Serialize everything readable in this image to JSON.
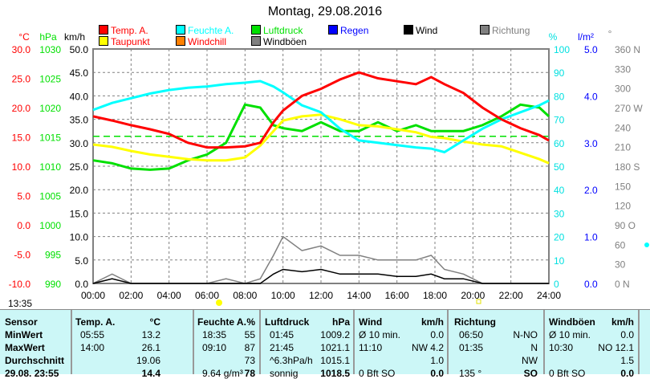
{
  "title": "Montag, 29.08.2016",
  "legend": [
    {
      "label": "Temp. A.",
      "color": "#ff0000"
    },
    {
      "label": "Taupunkt",
      "color": "#ffff00",
      "text": "#ff0000"
    },
    {
      "label": "Feuchte A.",
      "color": "#00ffff"
    },
    {
      "label": "Windchill",
      "color": "#ff8000",
      "text": "#ff0000"
    },
    {
      "label": "Luftdruck",
      "color": "#00e000"
    },
    {
      "label": "Windböen",
      "color": "#808080",
      "text": "#000000"
    },
    {
      "label": "Regen",
      "color": "#0000ff"
    },
    {
      "label": "Wind",
      "color": "#000000"
    },
    {
      "label": "Richtung",
      "color": "#808080"
    }
  ],
  "axes": {
    "temp_unit": "°C",
    "temp_ticks": [
      "30.0",
      "25.0",
      "20.0",
      "15.0",
      "10.0",
      "5.0",
      "0.0",
      "-5.0",
      "-10.0"
    ],
    "press_unit": "hPa",
    "press_ticks": [
      "1030",
      "1025",
      "1020",
      "1015",
      "1010",
      "1005",
      "1000",
      "995",
      "990"
    ],
    "wind_unit": "km/h",
    "wind_ticks": [
      "50.0",
      "45.0",
      "40.0",
      "35.0",
      "30.0",
      "25.0",
      "20.0",
      "15.0",
      "10.0",
      "5.0",
      "0.0"
    ],
    "hum_unit": "%",
    "hum_ticks": [
      "100",
      "90",
      "80",
      "70",
      "60",
      "50",
      "40",
      "30",
      "20",
      "10",
      "0"
    ],
    "rain_unit": "l/m²",
    "rain_ticks": [
      "5.0",
      "4.0",
      "3.0",
      "2.0",
      "1.0",
      "0.0"
    ],
    "dir_unit": "°",
    "dir_ticks": [
      "360 N",
      "330",
      "300",
      "270 W",
      "240",
      "210",
      "180 S",
      "150",
      "120",
      "90 O",
      "60",
      "30",
      "0 N"
    ],
    "x_ticks": [
      "00:00",
      "02:00",
      "04:00",
      "06:00",
      "08:00",
      "10:00",
      "12:00",
      "14:00",
      "16:00",
      "18:00",
      "20:00",
      "22:00",
      "24:00"
    ]
  },
  "current_time": "13:35",
  "chart_data": {
    "type": "line",
    "title": "Montag, 29.08.2016",
    "x": [
      0,
      1,
      2,
      3,
      4,
      5,
      6,
      7,
      8,
      8.8,
      9.5,
      10,
      11,
      12,
      13,
      14,
      15,
      16,
      17,
      17.8,
      18.5,
      19.5,
      20.5,
      21.5,
      22.5,
      23.5,
      24
    ],
    "series": [
      {
        "name": "Temp. A.",
        "unit": "°C",
        "values": [
          18.5,
          17.8,
          17,
          16.3,
          15.5,
          14,
          13.2,
          13.2,
          13.4,
          14,
          17.5,
          19.5,
          22,
          23.2,
          24.8,
          26,
          25,
          24.5,
          24,
          25.2,
          24,
          22.5,
          20,
          18,
          16.5,
          15.3,
          14.4
        ]
      },
      {
        "name": "Taupunkt",
        "unit": "°C",
        "values": [
          13.7,
          13.3,
          12.6,
          12,
          11.6,
          11.2,
          11,
          11,
          11.5,
          13.5,
          16,
          17.8,
          18.5,
          18.8,
          18,
          17,
          16.8,
          16.3,
          15.8,
          15,
          14.8,
          14.2,
          13.7,
          13.4,
          12.3,
          11.2,
          10.5
        ]
      },
      {
        "name": "Feuchte A.",
        "unit": "%",
        "values": [
          74,
          77,
          79,
          81,
          82.5,
          83.5,
          84,
          85,
          85.6,
          86.3,
          84,
          81.5,
          76,
          73,
          66,
          61,
          60,
          59,
          58,
          57.5,
          56,
          61,
          66,
          70,
          73,
          76,
          78
        ]
      },
      {
        "name": "Luftdruck",
        "unit": "hPa",
        "values": [
          1011,
          1010.5,
          1009.6,
          1009.4,
          1009.6,
          1011,
          1012,
          1014,
          1020.5,
          1020,
          1017,
          1016.5,
          1016,
          1017.5,
          1016,
          1016,
          1017.5,
          1016,
          1017,
          1016,
          1016,
          1016,
          1017,
          1018.5,
          1020.5,
          1020,
          1018.5
        ]
      },
      {
        "name": "Wind",
        "unit": "km/h",
        "values": [
          0,
          1,
          0,
          0,
          0,
          0,
          0,
          0,
          0,
          0,
          2,
          3,
          2.5,
          3,
          2,
          2,
          2,
          1.5,
          1.5,
          2,
          1,
          1,
          0,
          0,
          0,
          0,
          0
        ]
      },
      {
        "name": "Windböen",
        "unit": "km/h",
        "values": [
          0,
          2,
          0,
          0,
          0,
          0,
          0,
          1,
          0,
          1,
          6,
          10,
          7,
          8,
          6,
          6,
          5,
          5,
          5,
          6,
          3,
          2,
          0,
          0,
          0,
          0,
          0
        ]
      }
    ],
    "reference_line": {
      "name": "Luftdruck Mittel",
      "unit": "hPa",
      "value": 1015.1
    }
  },
  "table": {
    "headers": [
      [
        "Sensor",
        ""
      ],
      [
        "Temp. A.",
        "°C"
      ],
      [
        "Feuchte A.",
        "%"
      ],
      [
        "Luftdruck",
        "hPa"
      ],
      [
        "Wind",
        "km/h"
      ],
      [
        "Richtung",
        ""
      ],
      [
        "Windböen",
        "km/h"
      ]
    ],
    "rows": [
      {
        "label": "MinWert",
        "cells": [
          [
            "05:55",
            "13.2"
          ],
          [
            "18:35",
            "55"
          ],
          [
            "01:45",
            "1009.2"
          ],
          [
            "Ø 10 min.",
            "0.0"
          ],
          [
            "06:50",
            "N-NO"
          ],
          [
            "Ø 10 min.",
            "0.0"
          ]
        ]
      },
      {
        "label": "MaxWert",
        "cells": [
          [
            "14:00",
            "26.1"
          ],
          [
            "09:10",
            "87"
          ],
          [
            "21:45",
            "1021.1"
          ],
          [
            "11:10",
            "NW 4.2"
          ],
          [
            "01:35",
            "N"
          ],
          [
            "10:30",
            "NO 12.1"
          ]
        ]
      },
      {
        "label": "Durchschnitt",
        "cells": [
          [
            "",
            "19.06"
          ],
          [
            "",
            "73"
          ],
          [
            "^6.3hPa/h",
            "1015.1"
          ],
          [
            "",
            "1.0"
          ],
          [
            "",
            "NW"
          ],
          [
            "",
            "1.5"
          ]
        ]
      },
      {
        "label": "29.08. 23:55",
        "cells": [
          [
            "",
            "14.4"
          ],
          [
            "9.64 g/m³",
            "78"
          ],
          [
            "sonnig",
            "1018.5"
          ],
          [
            "0 Bft SO",
            "0.0"
          ],
          [
            "135 °",
            "SO"
          ],
          [
            "0 Bft SO",
            "0.0"
          ]
        ]
      }
    ]
  }
}
